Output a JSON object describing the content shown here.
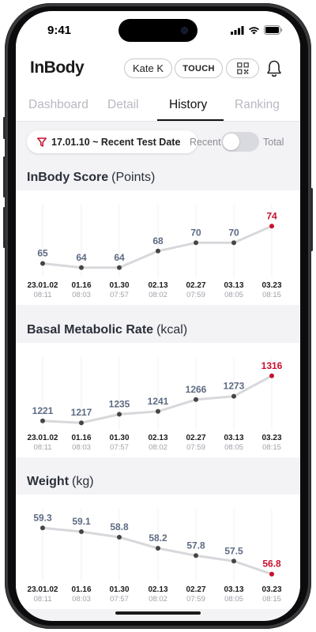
{
  "status_bar": {
    "time": "9:41"
  },
  "header": {
    "logo": "InBody",
    "user_name": "Kate K",
    "touch_label": "TOUCH",
    "qr_icon": "qr-code-icon",
    "bell_icon": "bell-icon"
  },
  "tabs": [
    {
      "label": "Dashboard",
      "active": false
    },
    {
      "label": "Detail",
      "active": false
    },
    {
      "label": "History",
      "active": true
    },
    {
      "label": "Ranking",
      "active": false
    }
  ],
  "filter": {
    "date_range": "17.01.10 ~ Recent Test Date",
    "toggle_left": "Recent",
    "toggle_right": "Total",
    "toggle_state": "Recent"
  },
  "colors": {
    "highlight": "#c8102e",
    "value": "#5d6b82",
    "line": "#d8d8dc",
    "point": "#454545"
  },
  "charts": [
    {
      "title": "InBody Score",
      "unit": "(Points)",
      "chart_data": {
        "type": "line",
        "x": [
          "23.01.02",
          "01.16",
          "01.30",
          "02.13",
          "02.27",
          "03.13",
          "03.23"
        ],
        "times": [
          "08:11",
          "08:03",
          "07:57",
          "08:02",
          "07:59",
          "08:05",
          "08:15"
        ],
        "values": [
          65,
          64,
          64,
          68,
          70,
          70,
          74
        ],
        "highlight_last": true,
        "ylim": [
          63,
          75
        ]
      }
    },
    {
      "title": "Basal Metabolic Rate",
      "unit": "(kcal)",
      "chart_data": {
        "type": "line",
        "x": [
          "23.01.02",
          "01.16",
          "01.30",
          "02.13",
          "02.27",
          "03.13",
          "03.23"
        ],
        "times": [
          "08:11",
          "08:03",
          "07:57",
          "08:02",
          "07:59",
          "08:05",
          "08:15"
        ],
        "values": [
          1221,
          1217,
          1235,
          1241,
          1266,
          1273,
          1316
        ],
        "highlight_last": true,
        "ylim": [
          1214,
          1319
        ]
      }
    },
    {
      "title": "Weight",
      "unit": "(kg)",
      "chart_data": {
        "type": "line",
        "x": [
          "23.01.02",
          "01.16",
          "01.30",
          "02.13",
          "02.27",
          "03.13",
          "03.23"
        ],
        "times": [
          "08:11",
          "08:03",
          "07:57",
          "08:02",
          "07:59",
          "08:05",
          "08:15"
        ],
        "values": [
          59.3,
          59.1,
          58.8,
          58.2,
          57.8,
          57.5,
          56.8
        ],
        "highlight_last": true,
        "ylim": [
          56.7,
          59.4
        ]
      }
    }
  ]
}
